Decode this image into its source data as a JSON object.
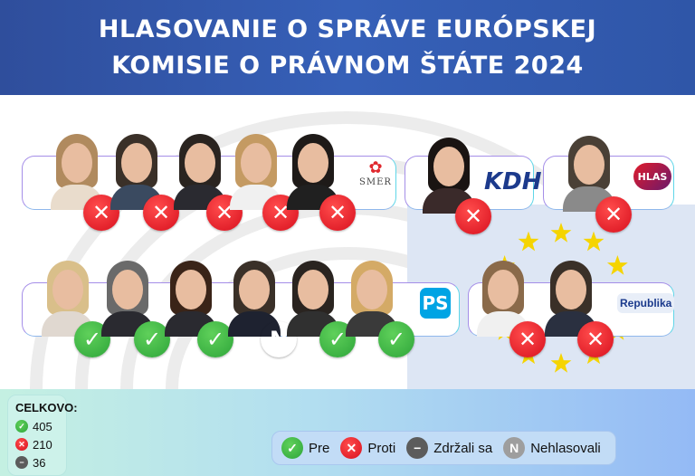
{
  "title": {
    "line1": "HLASOVANIE O SPRÁVE EURÓPSKEJ",
    "line2": "KOMISIE O PRÁVNOM ŠTÁTE 2024"
  },
  "colors": {
    "header": "#3360b5",
    "pre": "#2ea53a",
    "proti": "#d8101e",
    "zdrzali": "#5c5c5c",
    "nehlasovali": "#9e9e9e"
  },
  "parties": {
    "smer": "SMER",
    "kdh": "KDH",
    "hlas": "HLAS",
    "ps": "PS",
    "republika": "Republika"
  },
  "members": [
    {
      "party": "SMER",
      "vote": "proti"
    },
    {
      "party": "SMER",
      "vote": "proti"
    },
    {
      "party": "SMER",
      "vote": "proti"
    },
    {
      "party": "SMER",
      "vote": "proti"
    },
    {
      "party": "SMER",
      "vote": "proti"
    },
    {
      "party": "KDH",
      "vote": "proti"
    },
    {
      "party": "HLAS",
      "vote": "proti"
    },
    {
      "party": "PS",
      "vote": "pre"
    },
    {
      "party": "PS",
      "vote": "pre"
    },
    {
      "party": "PS",
      "vote": "pre"
    },
    {
      "party": "PS",
      "vote": "nehlasovali"
    },
    {
      "party": "PS",
      "vote": "pre"
    },
    {
      "party": "PS",
      "vote": "pre"
    },
    {
      "party": "Republika",
      "vote": "proti"
    },
    {
      "party": "Republika",
      "vote": "proti"
    }
  ],
  "totals": {
    "label": "CELKOVO:",
    "pre": "405",
    "proti": "210",
    "zdrzali": "36"
  },
  "legend": {
    "pre": "Pre",
    "proti": "Proti",
    "zdrzali": "Zdržali sa",
    "nehlasovali": "Nehlasovali",
    "nehlasovali_symbol": "N"
  },
  "icons": {
    "pre": "check-icon",
    "proti": "x-icon",
    "zdrzali": "minus-icon",
    "nehlasovali": "n-icon"
  }
}
